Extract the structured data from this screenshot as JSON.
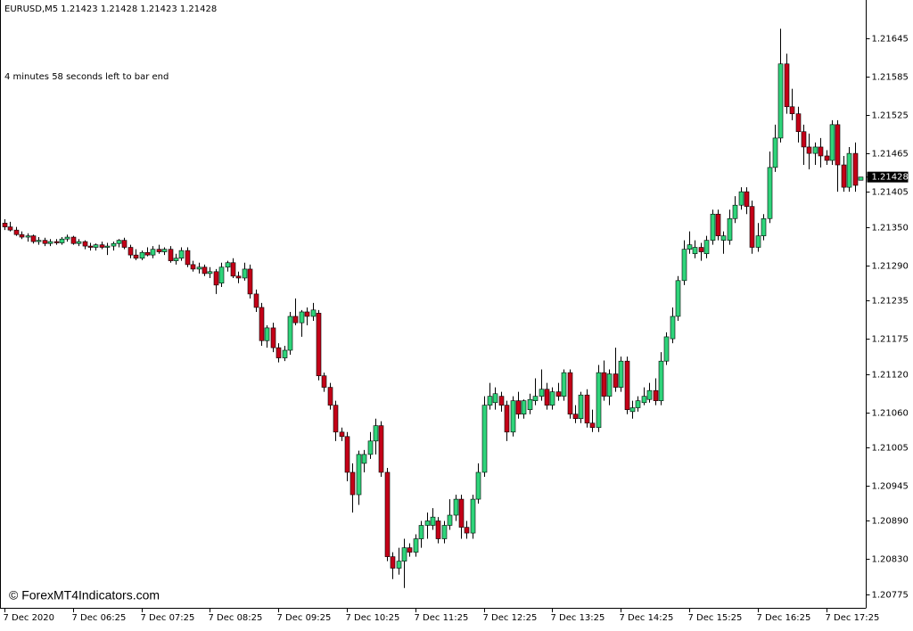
{
  "chart_data": {
    "type": "candlestick",
    "title": "EURUSD,M5  1.21423 1.21428 1.21423 1.21428",
    "timer_text": "4 minutes 58 seconds left to bar end",
    "watermark": "© ForexMT4Indicators.com",
    "up_color": "#2fd47a",
    "down_color": "#c40018",
    "wick_color": "#000000",
    "ylim": [
      1.20754,
      1.21705
    ],
    "yticks": [
      1.21645,
      1.21585,
      1.21525,
      1.21465,
      1.21405,
      {
        "value": 1.2135,
        "label": "1.21350"
      },
      {
        "value": 1.2129,
        "label": "1.21290"
      },
      1.21235,
      1.21175,
      {
        "value": 1.2112,
        "label": "1.21120"
      },
      {
        "value": 1.2106,
        "label": "1.21060"
      },
      1.21005,
      1.20945,
      {
        "value": 1.2089,
        "label": "1.20890"
      },
      {
        "value": 1.2083,
        "label": "1.20830"
      },
      1.20775
    ],
    "xticks": [
      {
        "value": 0,
        "label": "7 Dec 2020"
      },
      {
        "value": 12,
        "label": "7 Dec 06:25"
      },
      {
        "value": 24,
        "label": "7 Dec 07:25"
      },
      {
        "value": 36,
        "label": "7 Dec 08:25"
      },
      {
        "value": 48,
        "label": "7 Dec 09:25"
      },
      {
        "value": 60,
        "label": "7 Dec 10:25"
      },
      {
        "value": 72,
        "label": "7 Dec 11:25"
      },
      {
        "value": 84,
        "label": "7 Dec 12:25"
      },
      {
        "value": 96,
        "label": "7 Dec 13:25"
      },
      {
        "value": 108,
        "label": "7 Dec 14:25"
      },
      {
        "value": 120,
        "label": "7 Dec 15:25"
      },
      {
        "value": 132,
        "label": "7 Dec 16:25"
      },
      {
        "value": 144,
        "label": "7 Dec 17:25"
      }
    ],
    "current_price": 1.21428,
    "candles": [
      [
        1.21356,
        1.21362,
        1.21345,
        1.2135
      ],
      [
        1.2135,
        1.21358,
        1.21343,
        1.21345
      ],
      [
        1.21345,
        1.2135,
        1.21336,
        1.21338
      ],
      [
        1.21338,
        1.21343,
        1.21331,
        1.21334
      ],
      [
        1.21334,
        1.2134,
        1.21327,
        1.21336
      ],
      [
        1.21336,
        1.21338,
        1.21324,
        1.21327
      ],
      [
        1.21327,
        1.21334,
        1.21322,
        1.21329
      ],
      [
        1.21329,
        1.21333,
        1.2132,
        1.21324
      ],
      [
        1.21324,
        1.21331,
        1.2132,
        1.21327
      ],
      [
        1.21327,
        1.21331,
        1.21322,
        1.21325
      ],
      [
        1.21325,
        1.21334,
        1.21322,
        1.21331
      ],
      [
        1.21331,
        1.21338,
        1.21327,
        1.21334
      ],
      [
        1.21334,
        1.21336,
        1.21322,
        1.21324
      ],
      [
        1.21324,
        1.21331,
        1.2132,
        1.21327
      ],
      [
        1.21327,
        1.21329,
        1.21315,
        1.2132
      ],
      [
        1.2132,
        1.21325,
        1.21313,
        1.21318
      ],
      [
        1.21318,
        1.21324,
        1.21313,
        1.21322
      ],
      [
        1.21322,
        1.21327,
        1.21315,
        1.21318
      ],
      [
        1.21318,
        1.21325,
        1.21306,
        1.2132
      ],
      [
        1.2132,
        1.21327,
        1.21313,
        1.21324
      ],
      [
        1.21324,
        1.21331,
        1.21318,
        1.21329
      ],
      [
        1.21329,
        1.21333,
        1.21315,
        1.21318
      ],
      [
        1.21318,
        1.21322,
        1.21301,
        1.21306
      ],
      [
        1.21306,
        1.21315,
        1.21298,
        1.21301
      ],
      [
        1.21301,
        1.21313,
        1.21298,
        1.2131
      ],
      [
        1.2131,
        1.21318,
        1.21304,
        1.21306
      ],
      [
        1.21306,
        1.2132,
        1.21301,
        1.21315
      ],
      [
        1.21315,
        1.21322,
        1.21308,
        1.21311
      ],
      [
        1.21311,
        1.21318,
        1.21306,
        1.21315
      ],
      [
        1.21315,
        1.2132,
        1.21294,
        1.21297
      ],
      [
        1.21297,
        1.21308,
        1.21291,
        1.21301
      ],
      [
        1.21301,
        1.21318,
        1.21297,
        1.21313
      ],
      [
        1.21313,
        1.21318,
        1.21287,
        1.21291
      ],
      [
        1.21291,
        1.21297,
        1.2128,
        1.21284
      ],
      [
        1.21284,
        1.21294,
        1.21277,
        1.21287
      ],
      [
        1.21287,
        1.21291,
        1.21273,
        1.21277
      ],
      [
        1.21277,
        1.21287,
        1.2127,
        1.2128
      ],
      [
        1.2128,
        1.21284,
        1.21245,
        1.21259
      ],
      [
        1.21262,
        1.21294,
        1.21256,
        1.21287
      ],
      [
        1.21287,
        1.21297,
        1.2128,
        1.21294
      ],
      [
        1.21294,
        1.21301,
        1.2127,
        1.21273
      ],
      [
        1.21273,
        1.2128,
        1.21262,
        1.2127
      ],
      [
        1.2127,
        1.21294,
        1.21266,
        1.21284
      ],
      [
        1.21284,
        1.21291,
        1.21238,
        1.21245
      ],
      [
        1.21245,
        1.21252,
        1.21217,
        1.21224
      ],
      [
        1.21224,
        1.21231,
        1.21164,
        1.21172
      ],
      [
        1.21172,
        1.21196,
        1.21161,
        1.21192
      ],
      [
        1.21192,
        1.212,
        1.21154,
        1.21161
      ],
      [
        1.21161,
        1.21168,
        1.21138,
        1.21145
      ],
      [
        1.21145,
        1.21164,
        1.2114,
        1.21157
      ],
      [
        1.21157,
        1.21217,
        1.2115,
        1.2121
      ],
      [
        1.2121,
        1.21238,
        1.21196,
        1.212
      ],
      [
        1.212,
        1.2122,
        1.21178,
        1.21217
      ],
      [
        1.21217,
        1.21224,
        1.21196,
        1.2121
      ],
      [
        1.2121,
        1.21231,
        1.21203,
        1.2122
      ],
      [
        1.21215,
        1.2122,
        1.2111,
        1.21117
      ],
      [
        1.21117,
        1.21122,
        1.21092,
        1.21099
      ],
      [
        1.21099,
        1.21106,
        1.21064,
        1.21071
      ],
      [
        1.21071,
        1.21078,
        1.21015,
        1.21029
      ],
      [
        1.21029,
        1.21036,
        1.21015,
        1.21022
      ],
      [
        1.21022,
        1.21029,
        1.20952,
        1.20966
      ],
      [
        1.20966,
        1.2098,
        1.20903,
        1.20931
      ],
      [
        1.20931,
        1.21,
        1.20915,
        1.20994
      ],
      [
        1.2098,
        1.21001,
        1.20966,
        1.20994
      ],
      [
        1.20994,
        1.21029,
        1.20987,
        1.21015
      ],
      [
        1.21015,
        1.2105,
        1.20994,
        1.21039
      ],
      [
        1.21039,
        1.21046,
        1.20959,
        1.20966
      ],
      [
        1.20966,
        1.20973,
        1.20827,
        1.20834
      ],
      [
        1.20834,
        1.20841,
        1.20799,
        1.20816
      ],
      [
        1.20816,
        1.20848,
        1.20806,
        1.20827
      ],
      [
        1.20827,
        1.20862,
        1.20785,
        1.20848
      ],
      [
        1.20848,
        1.20855,
        1.20834,
        1.20841
      ],
      [
        1.20841,
        1.20869,
        1.20834,
        1.20862
      ],
      [
        1.20862,
        1.2089,
        1.20848,
        1.20883
      ],
      [
        1.20883,
        1.20903,
        1.20862,
        1.2089
      ],
      [
        1.20883,
        1.2091,
        1.20876,
        1.20896
      ],
      [
        1.2089,
        1.20896,
        1.20855,
        1.20862
      ],
      [
        1.20862,
        1.2089,
        1.20855,
        1.20883
      ],
      [
        1.20883,
        1.20924,
        1.20876,
        1.20899
      ],
      [
        1.20899,
        1.20931,
        1.2089,
        1.20924
      ],
      [
        1.20924,
        1.20931,
        1.20862,
        1.2088
      ],
      [
        1.2088,
        1.2089,
        1.20862,
        1.20871
      ],
      [
        1.20871,
        1.20931,
        1.20862,
        1.20924
      ],
      [
        1.20924,
        1.2098,
        1.20917,
        1.20966
      ],
      [
        1.20966,
        1.21085,
        1.20959,
        1.21071
      ],
      [
        1.21071,
        1.21106,
        1.21064,
        1.21085
      ],
      [
        1.21075,
        1.21099,
        1.21064,
        1.21089
      ],
      [
        1.21085,
        1.21092,
        1.21061,
        1.21071
      ],
      [
        1.21071,
        1.21078,
        1.21015,
        1.21029
      ],
      [
        1.21029,
        1.21085,
        1.21022,
        1.21078
      ],
      [
        1.21078,
        1.21092,
        1.2105,
        1.21057
      ],
      [
        1.21057,
        1.2108,
        1.2105,
        1.21078
      ],
      [
        1.21064,
        1.21089,
        1.21057,
        1.2108
      ],
      [
        1.21078,
        1.21113,
        1.21071,
        1.21085
      ],
      [
        1.21085,
        1.21127,
        1.21078,
        1.21096
      ],
      [
        1.21096,
        1.21106,
        1.21064,
        1.21071
      ],
      [
        1.21071,
        1.21099,
        1.21064,
        1.21092
      ],
      [
        1.21092,
        1.21106,
        1.21078,
        1.21085
      ],
      [
        1.21085,
        1.21127,
        1.21078,
        1.21122
      ],
      [
        1.21122,
        1.21127,
        1.2105,
        1.21057
      ],
      [
        1.21057,
        1.21071,
        1.21043,
        1.2105
      ],
      [
        1.2105,
        1.21092,
        1.21043,
        1.21087
      ],
      [
        1.21087,
        1.21096,
        1.21036,
        1.21043
      ],
      [
        1.21043,
        1.21064,
        1.21029,
        1.21036
      ],
      [
        1.21036,
        1.21134,
        1.21029,
        1.21122
      ],
      [
        1.21122,
        1.21141,
        1.21078,
        1.21085
      ],
      [
        1.21085,
        1.21127,
        1.21071,
        1.2112
      ],
      [
        1.2112,
        1.21161,
        1.21092,
        1.21099
      ],
      [
        1.21099,
        1.21147,
        1.21092,
        1.2114
      ],
      [
        1.2114,
        1.21147,
        1.21057,
        1.21064
      ],
      [
        1.21061,
        1.21078,
        1.2105,
        1.21067
      ],
      [
        1.21067,
        1.21085,
        1.21061,
        1.21078
      ],
      [
        1.21075,
        1.21099,
        1.21071,
        1.21085
      ],
      [
        1.2108,
        1.21106,
        1.21075,
        1.21094
      ],
      [
        1.21094,
        1.21113,
        1.21071,
        1.21078
      ],
      [
        1.21078,
        1.21154,
        1.21071,
        1.2114
      ],
      [
        1.2114,
        1.21185,
        1.21134,
        1.21178
      ],
      [
        1.21175,
        1.21224,
        1.21168,
        1.2121
      ],
      [
        1.2121,
        1.21273,
        1.21203,
        1.21266
      ],
      [
        1.21266,
        1.21329,
        1.21259,
        1.21315
      ],
      [
        1.21315,
        1.21343,
        1.21308,
        1.21322
      ],
      [
        1.21308,
        1.21329,
        1.21301,
        1.21318
      ],
      [
        1.21318,
        1.21325,
        1.21297,
        1.21311
      ],
      [
        1.21308,
        1.21336,
        1.21301,
        1.21329
      ],
      [
        1.21329,
        1.21377,
        1.21322,
        1.2137
      ],
      [
        1.2137,
        1.21377,
        1.21329,
        1.21336
      ],
      [
        1.21329,
        1.21343,
        1.21308,
        1.21336
      ],
      [
        1.21329,
        1.21377,
        1.21322,
        1.21363
      ],
      [
        1.21363,
        1.21398,
        1.21356,
        1.21384
      ],
      [
        1.21384,
        1.21412,
        1.21377,
        1.21405
      ],
      [
        1.21405,
        1.21412,
        1.2137,
        1.21382
      ],
      [
        1.21382,
        1.21391,
        1.21308,
        1.21318
      ],
      [
        1.21318,
        1.21356,
        1.21311,
        1.21336
      ],
      [
        1.21336,
        1.2137,
        1.21329,
        1.21363
      ],
      [
        1.21363,
        1.21468,
        1.21356,
        1.21443
      ],
      [
        1.21443,
        1.2151,
        1.21436,
        1.21489
      ],
      [
        1.21489,
        1.2166,
        1.21482,
        1.21605
      ],
      [
        1.21605,
        1.21621,
        1.21527,
        1.21538
      ],
      [
        1.21538,
        1.21566,
        1.21517,
        1.21527
      ],
      [
        1.21527,
        1.21538,
        1.21482,
        1.21499
      ],
      [
        1.21499,
        1.2151,
        1.21447,
        1.21475
      ],
      [
        1.21475,
        1.21496,
        1.2144,
        1.21465
      ],
      [
        1.21465,
        1.21482,
        1.21447,
        1.21475
      ],
      [
        1.21475,
        1.21489,
        1.21443,
        1.21461
      ],
      [
        1.21461,
        1.2147,
        1.21447,
        1.21454
      ],
      [
        1.21454,
        1.21517,
        1.21447,
        1.2151
      ],
      [
        1.2151,
        1.21517,
        1.21405,
        1.21447
      ],
      [
        1.21447,
        1.21461,
        1.21405,
        1.21412
      ],
      [
        1.21412,
        1.21475,
        1.21405,
        1.21465
      ],
      [
        1.21465,
        1.21482,
        1.21405,
        1.21415
      ],
      [
        1.21423,
        1.21428,
        1.21423,
        1.21428
      ]
    ]
  }
}
